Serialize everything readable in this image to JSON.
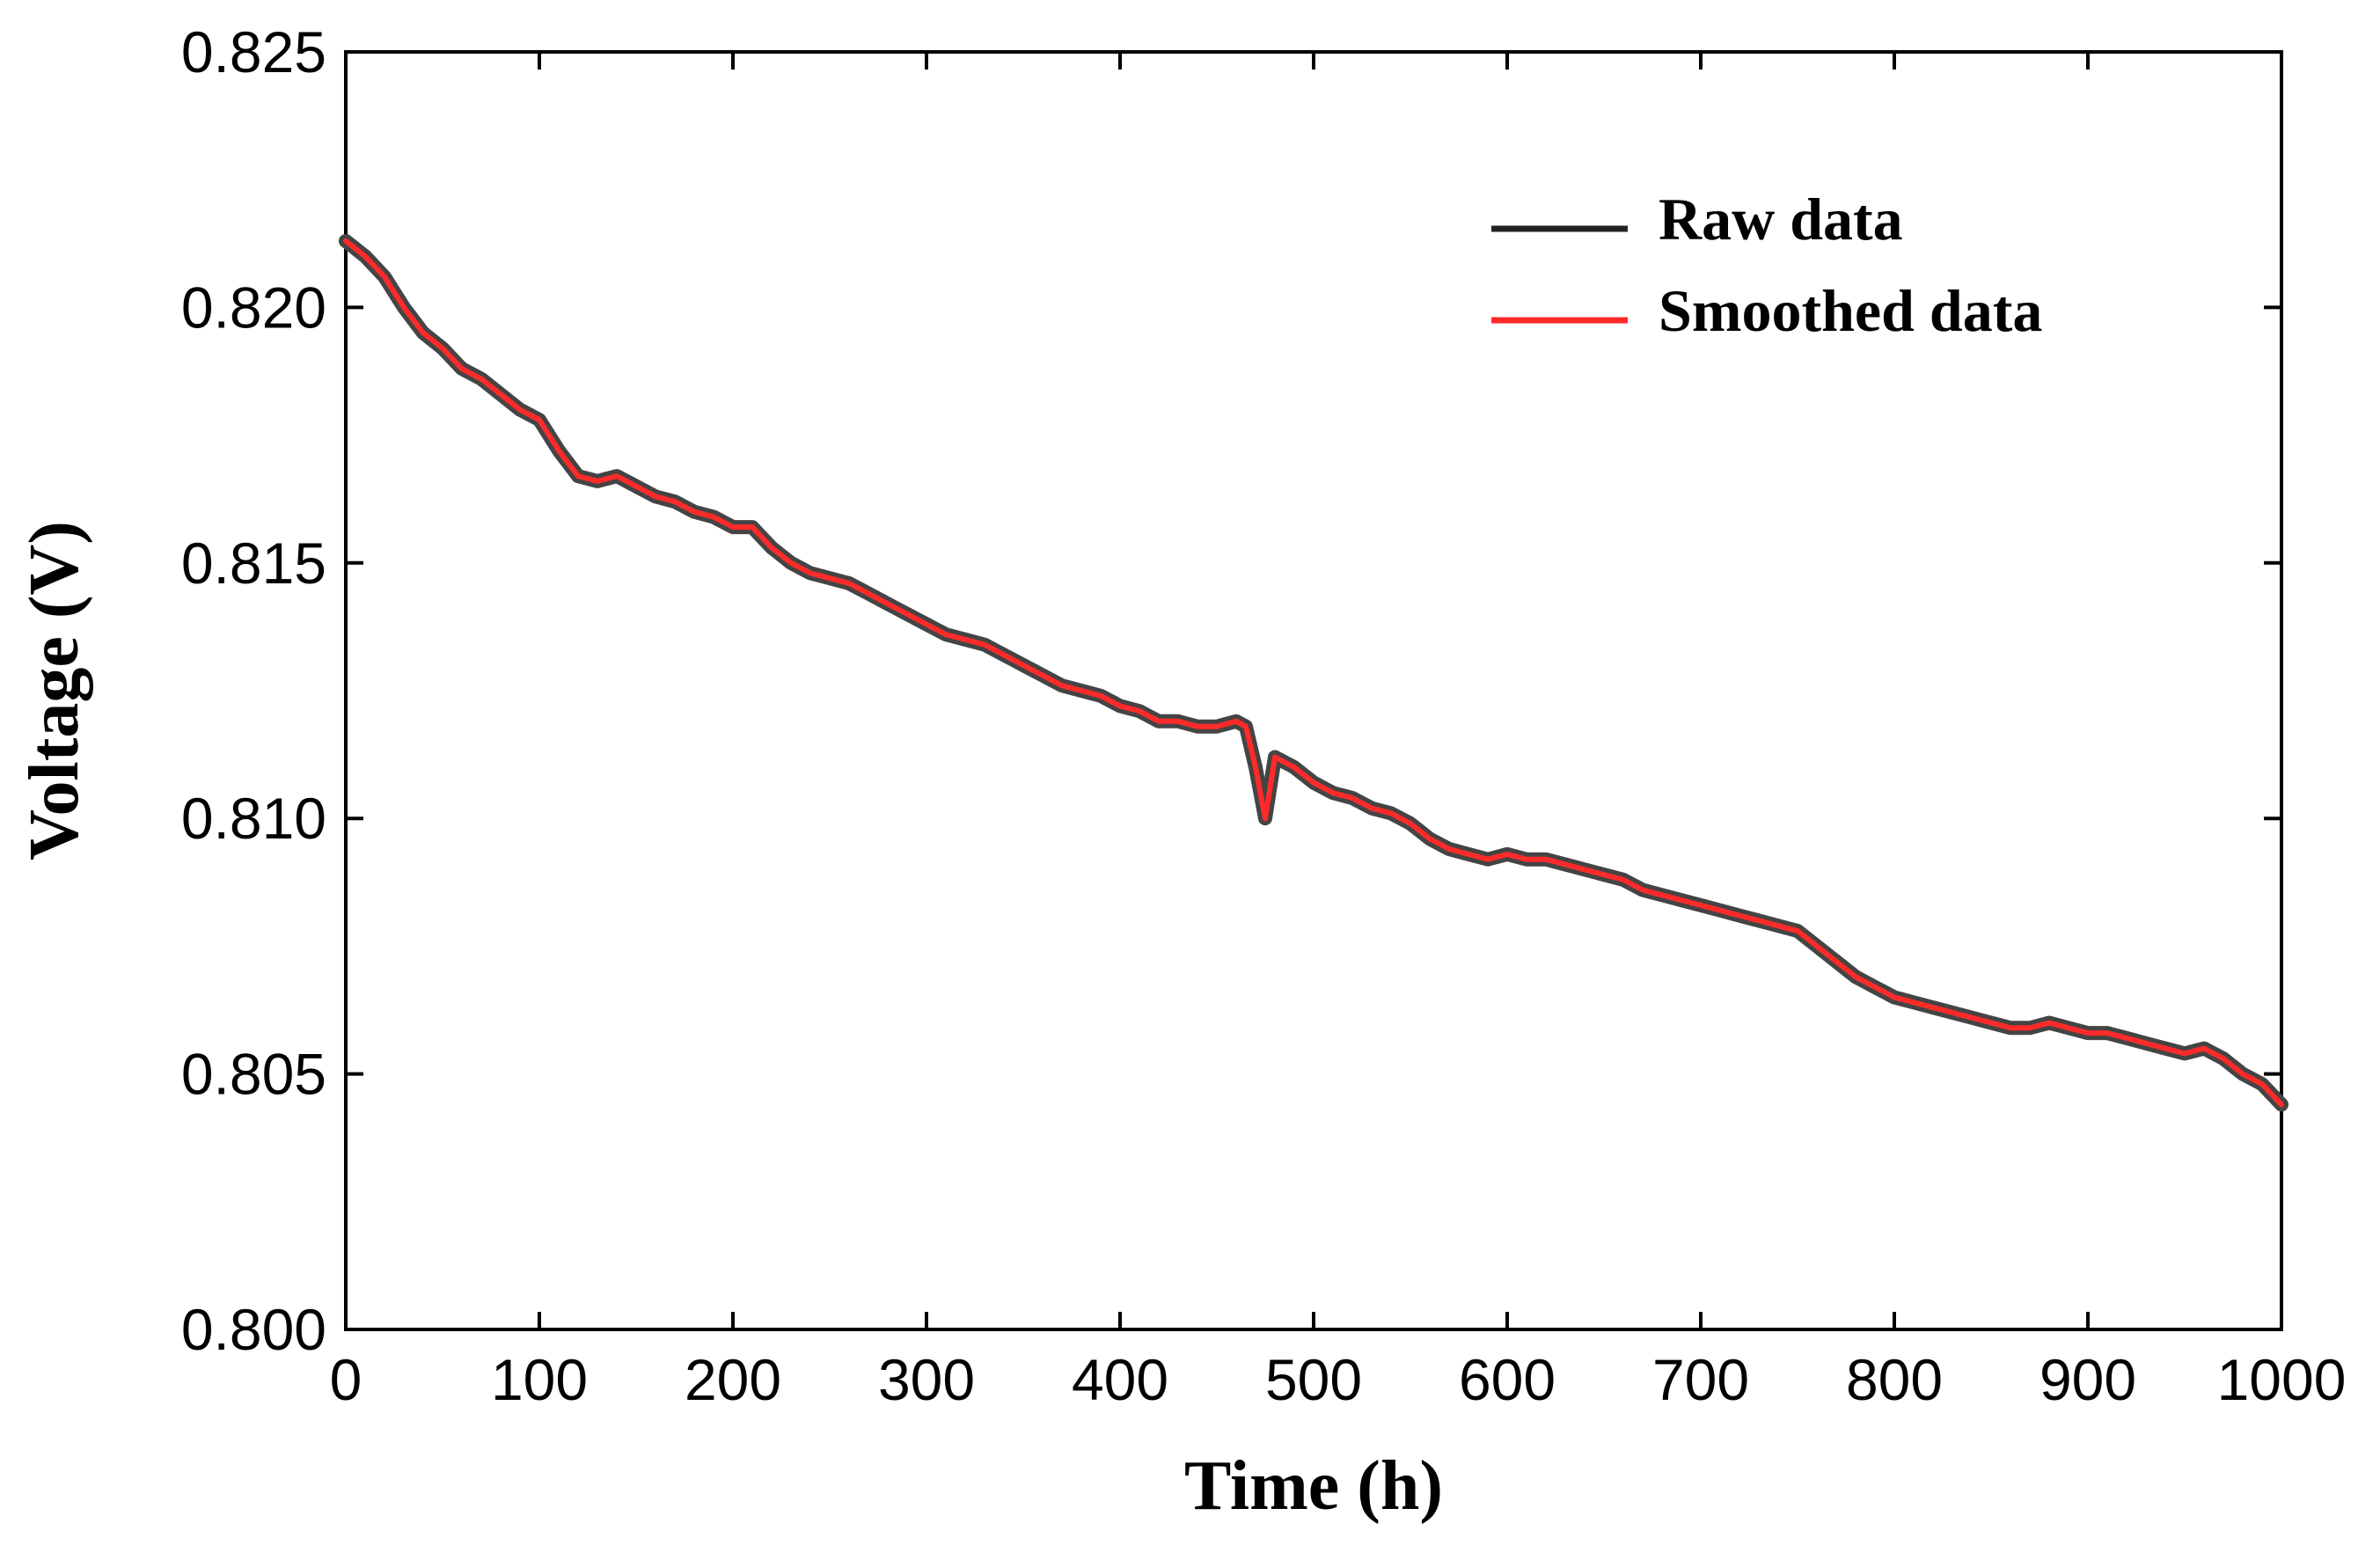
{
  "chart_data": {
    "type": "line",
    "xlabel": "Time (h)",
    "ylabel": "Voltage (V)",
    "xlim": [
      0,
      1000
    ],
    "ylim": [
      0.8,
      0.825
    ],
    "xticks": [
      0,
      100,
      200,
      300,
      400,
      500,
      600,
      700,
      800,
      900,
      1000
    ],
    "yticks": [
      0.8,
      0.805,
      0.81,
      0.815,
      0.82,
      0.825
    ],
    "xtick_labels": [
      "0",
      "100",
      "200",
      "300",
      "400",
      "500",
      "600",
      "700",
      "800",
      "900",
      "1000"
    ],
    "ytick_labels": [
      "0.800",
      "0.805",
      "0.810",
      "0.815",
      "0.820",
      "0.825"
    ],
    "grid": false,
    "legend_position": "top-right",
    "colors": {
      "raw": "#444444",
      "smoothed": "#ff2a2a"
    },
    "series": [
      {
        "name": "Raw data",
        "color": "#444444",
        "x": [
          0,
          10,
          20,
          30,
          40,
          50,
          60,
          70,
          80,
          90,
          100,
          110,
          120,
          130,
          140,
          150,
          160,
          170,
          180,
          190,
          200,
          210,
          220,
          230,
          240,
          250,
          260,
          270,
          280,
          290,
          300,
          310,
          320,
          330,
          340,
          350,
          360,
          370,
          380,
          390,
          400,
          410,
          420,
          430,
          440,
          450,
          460,
          465,
          470,
          475,
          480,
          490,
          500,
          510,
          520,
          530,
          540,
          550,
          560,
          570,
          580,
          590,
          600,
          610,
          620,
          630,
          640,
          650,
          660,
          670,
          680,
          690,
          700,
          710,
          720,
          730,
          740,
          750,
          760,
          770,
          780,
          790,
          800,
          810,
          820,
          830,
          840,
          850,
          860,
          870,
          880,
          890,
          900,
          910,
          920,
          930,
          940,
          950,
          960,
          970,
          980,
          990,
          1000
        ],
        "values": [
          0.8213,
          0.821,
          0.8206,
          0.82,
          0.8195,
          0.8192,
          0.8188,
          0.8186,
          0.8183,
          0.818,
          0.8178,
          0.8172,
          0.8167,
          0.8166,
          0.8167,
          0.8165,
          0.8163,
          0.8162,
          0.816,
          0.8159,
          0.8157,
          0.8157,
          0.8153,
          0.815,
          0.8148,
          0.8147,
          0.8146,
          0.8144,
          0.8142,
          0.814,
          0.8138,
          0.8136,
          0.8135,
          0.8134,
          0.8132,
          0.813,
          0.8128,
          0.8126,
          0.8125,
          0.8124,
          0.8122,
          0.8121,
          0.8119,
          0.8119,
          0.8118,
          0.8118,
          0.8119,
          0.8118,
          0.811,
          0.81,
          0.8112,
          0.811,
          0.8107,
          0.8105,
          0.8104,
          0.8102,
          0.8101,
          0.8099,
          0.8096,
          0.8094,
          0.8093,
          0.8092,
          0.8093,
          0.8092,
          0.8092,
          0.8091,
          0.809,
          0.8089,
          0.8088,
          0.8086,
          0.8085,
          0.8084,
          0.8083,
          0.8082,
          0.8081,
          0.808,
          0.8079,
          0.8078,
          0.8075,
          0.8072,
          0.8069,
          0.8067,
          0.8065,
          0.8064,
          0.8063,
          0.8062,
          0.8061,
          0.806,
          0.8059,
          0.8059,
          0.806,
          0.8059,
          0.8058,
          0.8058,
          0.8057,
          0.8056,
          0.8055,
          0.8054,
          0.8055,
          0.8053,
          0.805,
          0.8048,
          0.8044
        ]
      },
      {
        "name": "Smoothed data",
        "color": "#ff2a2a",
        "x": [
          0,
          10,
          20,
          30,
          40,
          50,
          60,
          70,
          80,
          90,
          100,
          110,
          120,
          130,
          140,
          150,
          160,
          170,
          180,
          190,
          200,
          210,
          220,
          230,
          240,
          250,
          260,
          270,
          280,
          290,
          300,
          310,
          320,
          330,
          340,
          350,
          360,
          370,
          380,
          390,
          400,
          410,
          420,
          430,
          440,
          450,
          460,
          465,
          470,
          475,
          480,
          490,
          500,
          510,
          520,
          530,
          540,
          550,
          560,
          570,
          580,
          590,
          600,
          610,
          620,
          630,
          640,
          650,
          660,
          670,
          680,
          690,
          700,
          710,
          720,
          730,
          740,
          750,
          760,
          770,
          780,
          790,
          800,
          810,
          820,
          830,
          840,
          850,
          860,
          870,
          880,
          890,
          900,
          910,
          920,
          930,
          940,
          950,
          960,
          970,
          980,
          990,
          1000
        ],
        "values": [
          0.8213,
          0.821,
          0.8206,
          0.82,
          0.8195,
          0.8192,
          0.8188,
          0.8186,
          0.8183,
          0.818,
          0.8178,
          0.8172,
          0.8167,
          0.8166,
          0.8167,
          0.8165,
          0.8163,
          0.8162,
          0.816,
          0.8159,
          0.8157,
          0.8157,
          0.8153,
          0.815,
          0.8148,
          0.8147,
          0.8146,
          0.8144,
          0.8142,
          0.814,
          0.8138,
          0.8136,
          0.8135,
          0.8134,
          0.8132,
          0.813,
          0.8128,
          0.8126,
          0.8125,
          0.8124,
          0.8122,
          0.8121,
          0.8119,
          0.8119,
          0.8118,
          0.8118,
          0.8119,
          0.8118,
          0.811,
          0.81,
          0.8112,
          0.811,
          0.8107,
          0.8105,
          0.8104,
          0.8102,
          0.8101,
          0.8099,
          0.8096,
          0.8094,
          0.8093,
          0.8092,
          0.8093,
          0.8092,
          0.8092,
          0.8091,
          0.809,
          0.8089,
          0.8088,
          0.8086,
          0.8085,
          0.8084,
          0.8083,
          0.8082,
          0.8081,
          0.808,
          0.8079,
          0.8078,
          0.8075,
          0.8072,
          0.8069,
          0.8067,
          0.8065,
          0.8064,
          0.8063,
          0.8062,
          0.8061,
          0.806,
          0.8059,
          0.8059,
          0.806,
          0.8059,
          0.8058,
          0.8058,
          0.8057,
          0.8056,
          0.8055,
          0.8054,
          0.8055,
          0.8053,
          0.805,
          0.8048,
          0.8044
        ]
      }
    ]
  }
}
